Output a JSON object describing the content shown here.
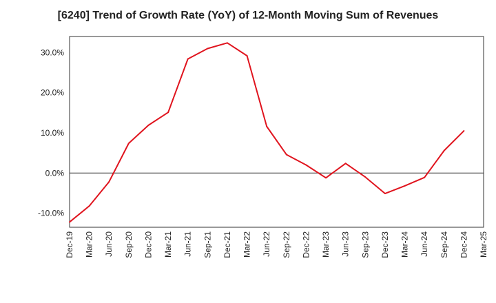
{
  "chart_data": {
    "type": "line",
    "title": "[6240]  Trend of Growth Rate (YoY) of 12-Month Moving Sum of Revenues",
    "xlabel": "",
    "ylabel": "",
    "ylim": [
      -13.5,
      34
    ],
    "yticks": [
      30,
      20,
      10,
      0,
      -10
    ],
    "ytick_labels": [
      "30.0%",
      "20.0%",
      "10.0%",
      "0.0%",
      "-10.0%"
    ],
    "xtick_labels": [
      "Dec-19",
      "Mar-20",
      "Jun-20",
      "Sep-20",
      "Dec-20",
      "Mar-21",
      "Jun-21",
      "Sep-21",
      "Dec-21",
      "Mar-22",
      "Jun-22",
      "Sep-22",
      "Dec-22",
      "Mar-23",
      "Jun-23",
      "Sep-23",
      "Dec-23",
      "Mar-24",
      "Jun-24",
      "Sep-24",
      "Dec-24",
      "Mar-25"
    ],
    "grid": true,
    "colors": {
      "line": "#e0141e",
      "grid": "#999999",
      "axis": "#333333"
    },
    "series": [
      {
        "x": [
          "Dec-19",
          "Mar-20",
          "Jun-20",
          "Sep-20",
          "Dec-20",
          "Mar-21",
          "Jun-21",
          "Sep-21",
          "Dec-21",
          "Mar-22",
          "Jun-22",
          "Sep-22",
          "Dec-22",
          "Mar-23",
          "Jun-23",
          "Sep-23",
          "Dec-23",
          "Mar-24",
          "Jun-24",
          "Sep-24",
          "Dec-24"
        ],
        "values": [
          -12.2,
          -8.2,
          -2.2,
          7.4,
          11.9,
          15.1,
          28.4,
          31.0,
          32.4,
          29.2,
          11.6,
          4.6,
          2.0,
          -1.2,
          2.4,
          -1.0,
          -5.1,
          -3.2,
          -1.1,
          5.6,
          10.5
        ]
      }
    ]
  }
}
